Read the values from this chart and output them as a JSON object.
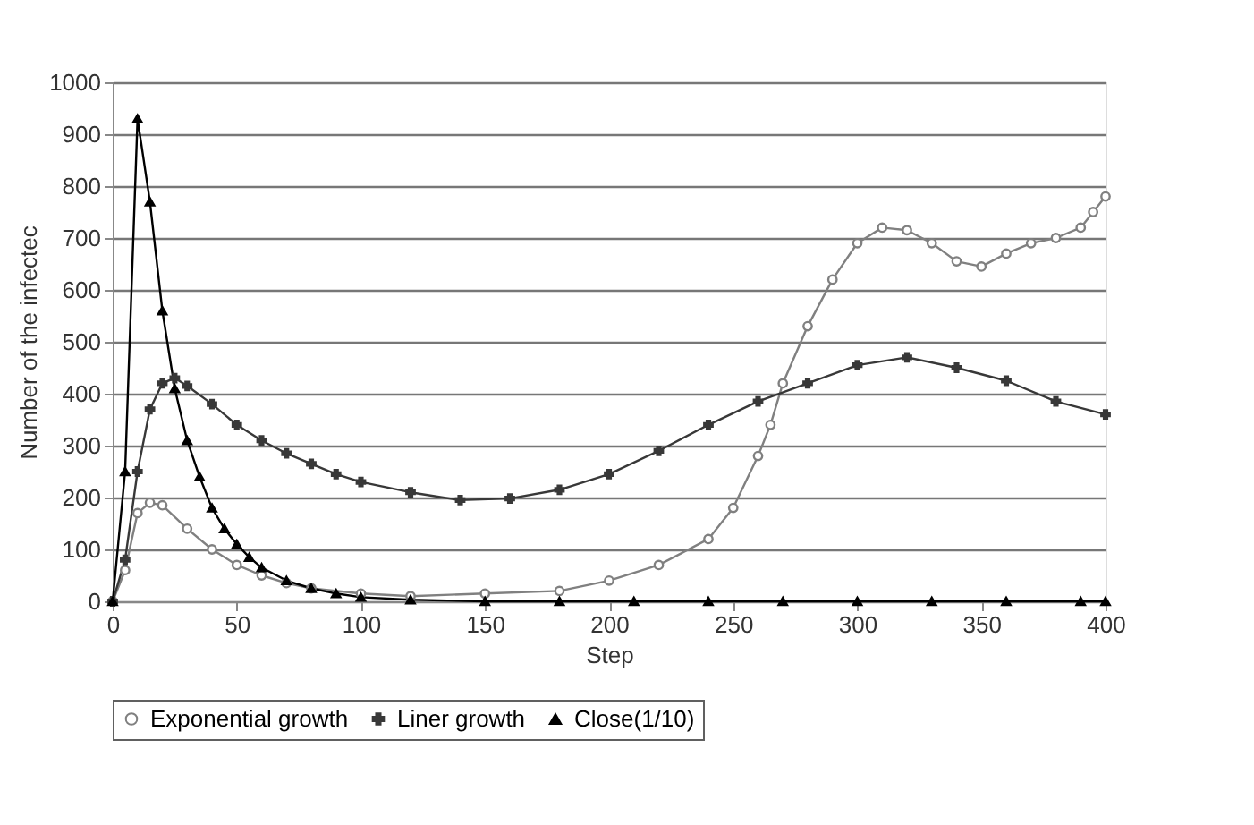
{
  "chart_data": {
    "type": "line",
    "xlabel": "Step",
    "ylabel": "Number of the infectec",
    "xlim": [
      0,
      400
    ],
    "xticks": [
      0,
      50,
      100,
      150,
      200,
      250,
      300,
      350,
      400
    ],
    "ylim": [
      0,
      1000
    ],
    "yticks": [
      0,
      100,
      200,
      300,
      400,
      500,
      600,
      700,
      800,
      900,
      1000
    ],
    "grid": "y",
    "legend": "bottom",
    "line_style": "solid",
    "series": [
      {
        "name": "Exponential growth",
        "color": "#808080",
        "marker": "circle",
        "x": [
          0,
          5,
          10,
          15,
          20,
          30,
          40,
          50,
          60,
          70,
          80,
          100,
          120,
          150,
          180,
          200,
          220,
          240,
          250,
          260,
          265,
          270,
          280,
          290,
          300,
          310,
          320,
          330,
          340,
          350,
          360,
          370,
          380,
          390,
          395,
          400
        ],
        "values": [
          0,
          60,
          170,
          190,
          185,
          140,
          100,
          70,
          50,
          35,
          25,
          15,
          10,
          15,
          20,
          40,
          70,
          120,
          180,
          280,
          340,
          420,
          530,
          620,
          690,
          720,
          715,
          690,
          655,
          645,
          670,
          690,
          700,
          720,
          750,
          780
        ]
      },
      {
        "name": "Liner growth",
        "color": "#383838",
        "marker": "cross",
        "x": [
          0,
          5,
          10,
          15,
          20,
          25,
          30,
          40,
          50,
          60,
          70,
          80,
          90,
          100,
          120,
          140,
          160,
          180,
          200,
          220,
          240,
          260,
          280,
          300,
          320,
          340,
          360,
          380,
          400
        ],
        "values": [
          0,
          80,
          250,
          370,
          420,
          430,
          415,
          380,
          340,
          310,
          285,
          265,
          245,
          230,
          210,
          195,
          198,
          215,
          245,
          290,
          340,
          385,
          420,
          455,
          470,
          450,
          425,
          385,
          360
        ]
      },
      {
        "name": "Close(1/10)",
        "color": "#000000",
        "marker": "triangle",
        "x": [
          0,
          5,
          10,
          15,
          20,
          25,
          30,
          35,
          40,
          45,
          50,
          55,
          60,
          70,
          80,
          90,
          100,
          120,
          150,
          180,
          210,
          240,
          270,
          300,
          330,
          360,
          390,
          400
        ],
        "values": [
          0,
          250,
          930,
          770,
          560,
          410,
          310,
          240,
          180,
          140,
          110,
          85,
          65,
          40,
          25,
          15,
          8,
          3,
          0,
          0,
          0,
          0,
          0,
          0,
          0,
          0,
          0,
          0
        ]
      }
    ]
  }
}
